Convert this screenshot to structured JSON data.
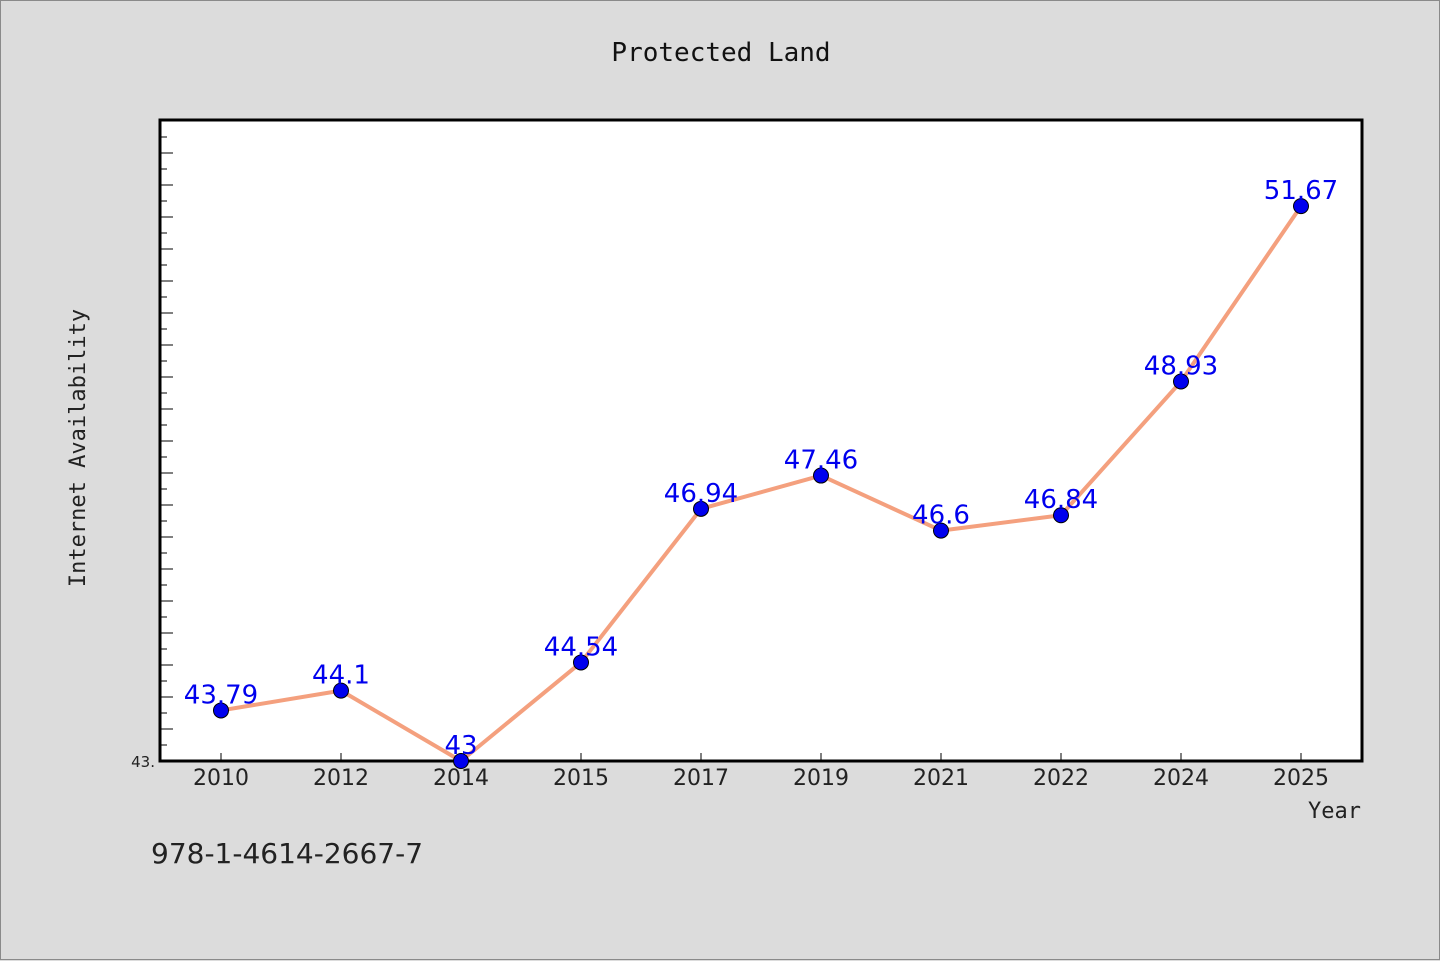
{
  "chart_data": {
    "type": "line",
    "title": "Protected Land",
    "xlabel": "Year",
    "ylabel": "Internet Availability",
    "categories": [
      "2010",
      "2012",
      "2014",
      "2015",
      "2017",
      "2019",
      "2021",
      "2022",
      "2024",
      "2025"
    ],
    "values": [
      43.79,
      44.1,
      43,
      44.54,
      46.94,
      47.46,
      46.6,
      46.84,
      48.93,
      51.67
    ],
    "data_labels": [
      "43.79",
      "44.1",
      "43",
      "44.54",
      "46.94",
      "47.46",
      "46.6",
      "46.84",
      "48.93",
      "51.67"
    ],
    "y_tick_label": "43.",
    "ylim": [
      43,
      53
    ],
    "grid": false,
    "legend": "none",
    "line_color": "#f4a07e",
    "marker_color": "#0000ee",
    "label_color": "#0000ee"
  },
  "footer": {
    "isbn": "978-1-4614-2667-7"
  }
}
